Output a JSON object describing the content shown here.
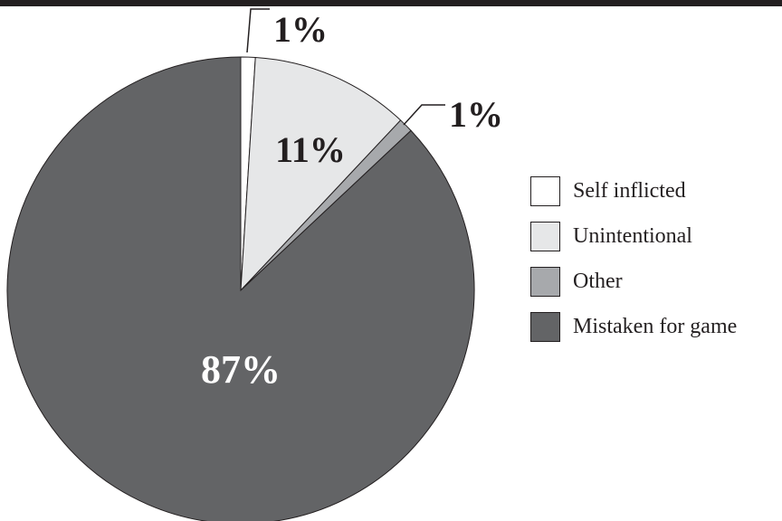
{
  "chart_data": {
    "type": "pie",
    "title": "",
    "slices": [
      {
        "name": "Self inflicted",
        "value": 1,
        "label": "1%",
        "color": "#ffffff",
        "label_color": "#231f20"
      },
      {
        "name": "Unintentional",
        "value": 11,
        "label": "11%",
        "color": "#e6e7e8",
        "label_color": "#231f20"
      },
      {
        "name": "Other",
        "value": 1,
        "label": "1%",
        "color": "#a7a9ac",
        "label_color": "#231f20"
      },
      {
        "name": "Mistaken for game",
        "value": 87,
        "label": "87%",
        "color": "#636466",
        "label_color": "#ffffff"
      }
    ],
    "legend_placement": "right"
  }
}
